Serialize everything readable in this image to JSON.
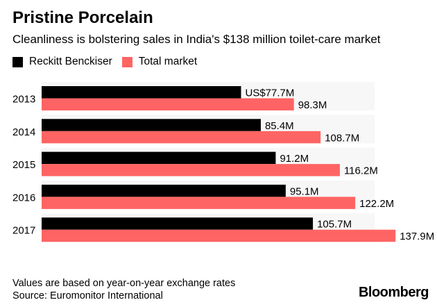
{
  "title": "Pristine Porcelain",
  "subtitle": "Cleanliness is bolstering sales in India's $138 million toilet-care market",
  "footnote": "Values are based on year-on-year exchange rates",
  "source": "Source: Euromonitor International",
  "brand": "Bloomberg",
  "chart_data": {
    "type": "bar",
    "orientation": "horizontal",
    "categories": [
      "2013",
      "2014",
      "2015",
      "2016",
      "2017"
    ],
    "series": [
      {
        "name": "Reckitt Benckiser",
        "color": "#000000",
        "values": [
          77.7,
          85.4,
          91.2,
          95.1,
          105.7
        ],
        "labels": [
          "US$77.7M",
          "85.4M",
          "91.2M",
          "95.1M",
          "105.7M"
        ]
      },
      {
        "name": "Total market",
        "color": "#ff6464",
        "values": [
          98.3,
          108.7,
          116.2,
          122.2,
          137.9
        ],
        "labels": [
          "98.3M",
          "108.7M",
          "116.2M",
          "122.2M",
          "137.9M"
        ]
      }
    ],
    "unit": "US$ millions",
    "legend": "top-left",
    "grid": false
  }
}
